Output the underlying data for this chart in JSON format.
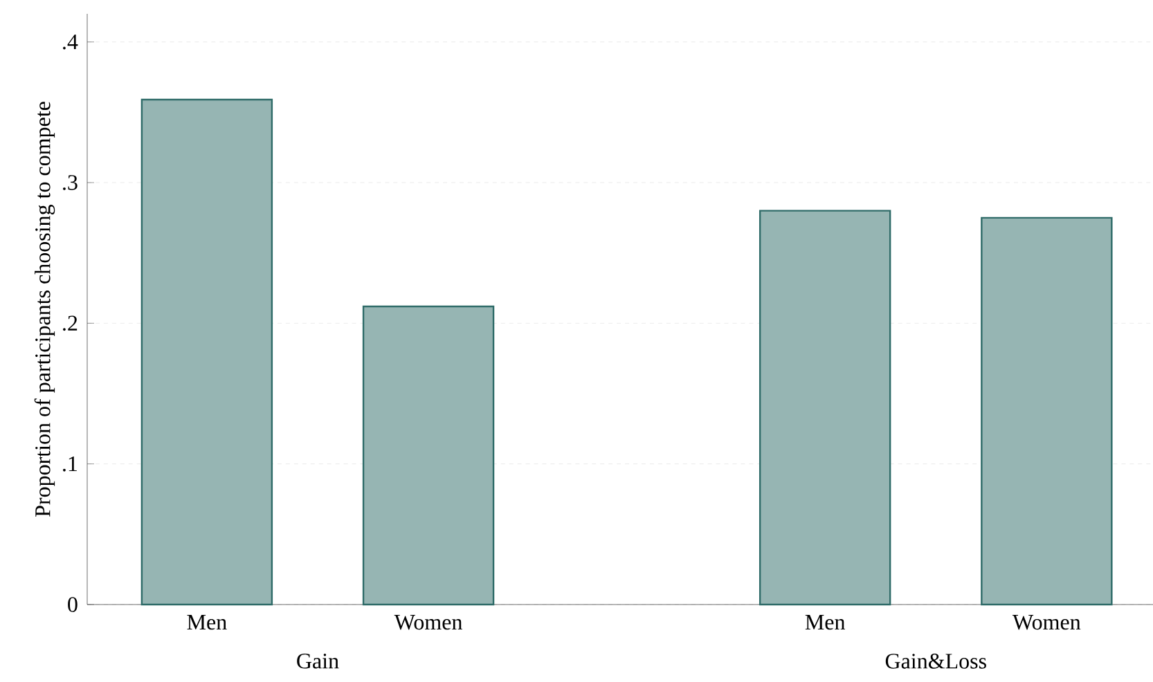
{
  "chart_data": {
    "type": "bar",
    "ylabel": "Proportion of participants choosing to compete",
    "categories": [
      "Men",
      "Women",
      "Men",
      "Women"
    ],
    "values": [
      0.359,
      0.212,
      0.28,
      0.275
    ],
    "color": "#96b5b3",
    "ylim": [
      0,
      0.42
    ],
    "yticks": [
      0,
      {
        "value": 0.1,
        "label": ".1"
      },
      {
        "value": 0.2,
        "label": ".2"
      },
      {
        "value": 0.3,
        "label": ".3"
      },
      {
        "value": 0.4,
        "label": ".4"
      }
    ],
    "grid": "y",
    "annotations": [
      "Gain",
      "Gain&Loss"
    ]
  }
}
